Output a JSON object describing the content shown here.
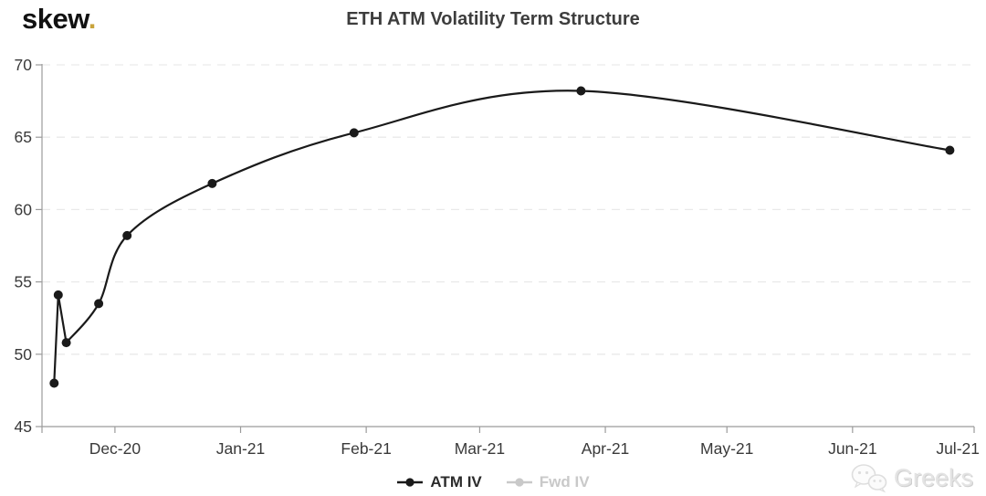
{
  "logo": {
    "text": "skew",
    "dot": ".",
    "colors": {
      "text": "#111111",
      "dot": "#c9a43c"
    }
  },
  "chart_data": {
    "type": "line",
    "title": "ETH ATM Volatility Term Structure",
    "x_axis": {
      "type": "time",
      "range": [
        "2020-11-13",
        "2021-07-01"
      ],
      "ticks": [
        {
          "date": "2020-12-01",
          "label": "Dec-20"
        },
        {
          "date": "2021-01-01",
          "label": "Jan-21"
        },
        {
          "date": "2021-02-01",
          "label": "Feb-21"
        },
        {
          "date": "2021-03-01",
          "label": "Mar-21"
        },
        {
          "date": "2021-04-01",
          "label": "Apr-21"
        },
        {
          "date": "2021-05-01",
          "label": "May-21"
        },
        {
          "date": "2021-06-01",
          "label": "Jun-21"
        },
        {
          "date": "2021-07-01",
          "label": "Jul-21"
        }
      ]
    },
    "y_axis": {
      "range": [
        45,
        70
      ],
      "ticks": [
        45,
        50,
        55,
        60,
        65,
        70
      ]
    },
    "grid": {
      "horizontal": true,
      "dashed": true
    },
    "series": [
      {
        "name": "ATM IV",
        "color": "#1a1a1a",
        "visible": true,
        "points": [
          {
            "date": "2020-11-16",
            "value": 48.0
          },
          {
            "date": "2020-11-17",
            "value": 54.1
          },
          {
            "date": "2020-11-19",
            "value": 50.8
          },
          {
            "date": "2020-11-27",
            "value": 53.5
          },
          {
            "date": "2020-12-04",
            "value": 58.2
          },
          {
            "date": "2020-12-25",
            "value": 61.8
          },
          {
            "date": "2021-01-29",
            "value": 65.3
          },
          {
            "date": "2021-03-26",
            "value": 68.2
          },
          {
            "date": "2021-06-25",
            "value": 64.1
          }
        ]
      },
      {
        "name": "Fwd IV",
        "color": "#c9c9c9",
        "visible": false,
        "points": []
      }
    ],
    "legend": {
      "position": "bottom-center",
      "items": [
        {
          "label": "ATM IV",
          "color": "#1a1a1a",
          "text_color": "#2b2b2b",
          "active": true
        },
        {
          "label": "Fwd IV",
          "color": "#c9c9c9",
          "text_color": "#c9c9c9",
          "active": false
        }
      ]
    },
    "style": {
      "axis_color": "#9b9b9b",
      "grid_color": "#e9e9e9",
      "label_color": "#3a3a3a",
      "title_color": "#3d3d3d",
      "marker_radius": 5,
      "line_width": 2.2
    }
  },
  "watermark": {
    "text": "Greeks",
    "icon": "wechat-chat-icon"
  }
}
